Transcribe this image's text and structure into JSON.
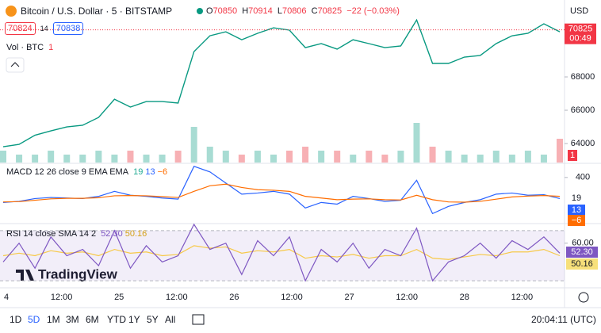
{
  "header": {
    "title": "Bitcoin / U.S. Dollar · 5 · BITSTAMP",
    "o": "O",
    "open": "70850",
    "h": "H",
    "high": "70914",
    "l": "L",
    "low": "70806",
    "c": "C",
    "close": "70825",
    "change": "−22 (−0.03%)",
    "bid": "70824",
    "spread": "14",
    "ask": "70838",
    "currency": "USD"
  },
  "price_pane": {
    "ylim": [
      62860,
      72380
    ],
    "yticks": [
      64000,
      66000,
      68000
    ],
    "close": [
      63810,
      63950,
      64500,
      64760,
      65000,
      65100,
      65570,
      66660,
      66190,
      66520,
      66520,
      66430,
      69520,
      70470,
      70710,
      70230,
      70620,
      70950,
      70810,
      69760,
      70000,
      69670,
      70230,
      70000,
      69760,
      69860,
      71420,
      68810,
      68810,
      69190,
      69290,
      70000,
      70470,
      70620,
      71190,
      70710
    ],
    "last": {
      "value": 70825,
      "label": "70825"
    },
    "countdown": "00:49"
  },
  "volume": {
    "label": "Vol · BTC",
    "last": "1",
    "values": [
      3,
      2,
      2,
      3,
      2,
      2,
      3,
      2,
      3,
      2,
      2,
      3,
      9,
      4,
      3,
      2,
      3,
      2,
      3,
      4,
      3,
      3,
      2,
      3,
      2,
      3,
      10,
      4,
      3,
      2,
      2,
      3,
      2,
      3,
      2,
      6
    ]
  },
  "macd": {
    "label": "MACD 12 26 close 9 EMA EMA",
    "ylim": [
      -430,
      640
    ],
    "yticks": [
      400
    ],
    "macd": [
      -50,
      -30,
      20,
      40,
      30,
      20,
      60,
      150,
      80,
      60,
      30,
      10,
      600,
      500,
      300,
      100,
      120,
      150,
      100,
      -150,
      -50,
      -80,
      60,
      20,
      -30,
      -10,
      350,
      -250,
      -120,
      -50,
      0,
      100,
      120,
      80,
      90,
      20
    ],
    "signal": [
      -40,
      -35,
      -10,
      15,
      25,
      25,
      35,
      70,
      75,
      70,
      55,
      40,
      150,
      250,
      280,
      220,
      180,
      170,
      150,
      60,
      30,
      0,
      10,
      15,
      0,
      -5,
      80,
      0,
      -40,
      -45,
      -30,
      10,
      50,
      65,
      75,
      60
    ],
    "values": [
      "19",
      "13",
      "−6"
    ]
  },
  "rsi": {
    "label": "RSI 14 close SMA 14 2",
    "ylim": [
      25,
      75
    ],
    "yticks": [
      {
        "value": 60,
        "label": "60.00"
      }
    ],
    "band": [
      30,
      70
    ],
    "rsi": [
      45,
      60,
      40,
      65,
      50,
      55,
      42,
      70,
      40,
      58,
      45,
      50,
      75,
      55,
      60,
      35,
      62,
      50,
      65,
      30,
      55,
      45,
      60,
      40,
      55,
      50,
      72,
      30,
      45,
      50,
      60,
      48,
      62,
      55,
      65,
      52
    ],
    "sma": [
      50,
      52,
      50,
      54,
      52,
      53,
      50,
      55,
      52,
      53,
      50,
      51,
      58,
      56,
      57,
      52,
      54,
      53,
      55,
      48,
      50,
      49,
      51,
      48,
      50,
      50,
      55,
      48,
      47,
      49,
      51,
      50,
      53,
      53,
      55,
      50
    ],
    "values": [
      "52.30",
      "50.16"
    ]
  },
  "time_axis": [
    "4",
    "12:00",
    "25",
    "12:00",
    "26",
    "12:00",
    "27",
    "12:00",
    "28",
    "12:00"
  ],
  "watermark": "TradingView",
  "toolbar": {
    "ranges": [
      "1D",
      "5D",
      "1M",
      "3M",
      "6M",
      "YTD",
      "1Y",
      "5Y",
      "All"
    ],
    "active": 1,
    "clock": "20:04:11 (UTC)"
  }
}
